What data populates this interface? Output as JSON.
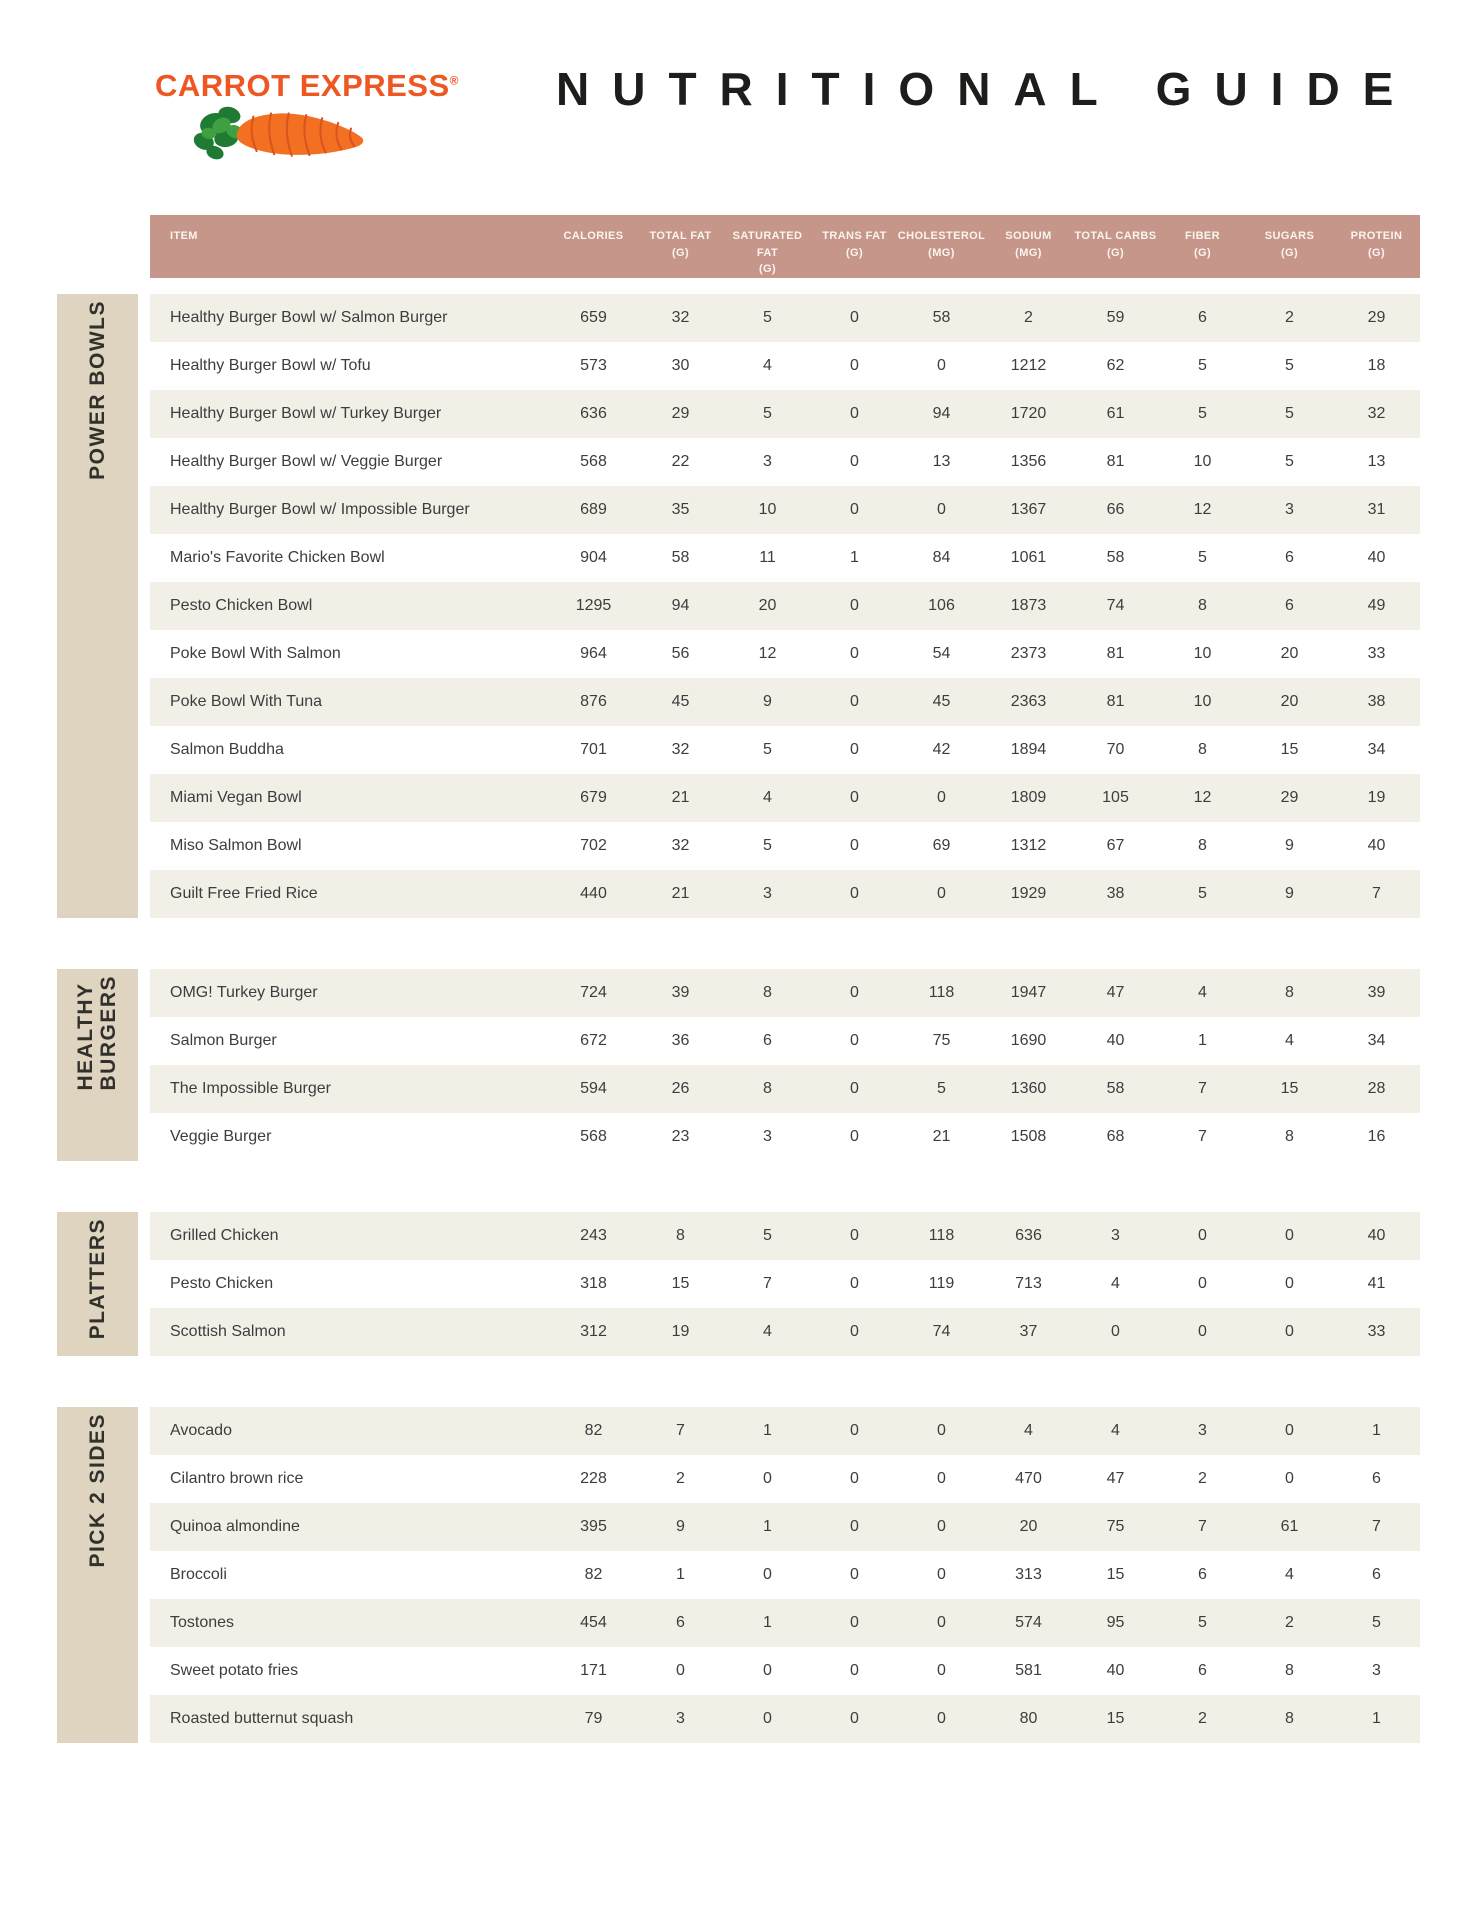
{
  "brand": {
    "logo_text": "CARROT EXPRESS",
    "registered_mark": "®"
  },
  "title": "NUTRITIONAL GUIDE",
  "colors": {
    "header-bg": "#c6968a",
    "row-stripe": "#f2efe7",
    "sidebar-bg": "#ded4c0",
    "text-dark": "#3d3d3d",
    "header-text": "#faf5ef",
    "sidebar-text": "#32302c",
    "brand-orange": "#ee5622",
    "title-black": "#1d1d1b",
    "carrot-orange": "#f36f21",
    "carrot-line": "#d9541e",
    "leaf-green-dark": "#1f7a33",
    "leaf-green-light": "#3fa041"
  },
  "table": {
    "columns": [
      {
        "label": "ITEM",
        "unit": ""
      },
      {
        "label": "CALORIES",
        "unit": ""
      },
      {
        "label": "TOTAL FAT",
        "unit": "(G)"
      },
      {
        "label": "SATURATED FAT",
        "unit": "(G)"
      },
      {
        "label": "TRANS FAT",
        "unit": "(G)"
      },
      {
        "label": "CHOLESTEROL",
        "unit": "(MG)"
      },
      {
        "label": "SODIUM",
        "unit": "(MG)"
      },
      {
        "label": "TOTAL CARBS",
        "unit": "(G)"
      },
      {
        "label": "FIBER",
        "unit": "(G)"
      },
      {
        "label": "SUGARS",
        "unit": "(G)"
      },
      {
        "label": "PROTEIN",
        "unit": "(G)"
      }
    ],
    "sections": [
      {
        "name": "POWER BOWLS",
        "label_lines": [
          "POWER BOWLS"
        ],
        "rows": [
          {
            "item": "Healthy Burger Bowl w/ Salmon Burger",
            "values": [
              659,
              32,
              5,
              0,
              58,
              2,
              59,
              6,
              2,
              29
            ]
          },
          {
            "item": "Healthy Burger Bowl w/ Tofu",
            "values": [
              573,
              30,
              4,
              0,
              0,
              1212,
              62,
              5,
              5,
              18
            ]
          },
          {
            "item": "Healthy Burger Bowl w/ Turkey Burger",
            "values": [
              636,
              29,
              5,
              0,
              94,
              1720,
              61,
              5,
              5,
              32
            ]
          },
          {
            "item": "Healthy Burger Bowl w/ Veggie Burger",
            "values": [
              568,
              22,
              3,
              0,
              13,
              1356,
              81,
              10,
              5,
              13
            ]
          },
          {
            "item": "Healthy Burger Bowl w/ Impossible Burger",
            "values": [
              689,
              35,
              10,
              0,
              0,
              1367,
              66,
              12,
              3,
              31
            ]
          },
          {
            "item": "Mario's Favorite Chicken Bowl",
            "values": [
              904,
              58,
              11,
              1,
              84,
              1061,
              58,
              5,
              6,
              40
            ]
          },
          {
            "item": "Pesto Chicken Bowl",
            "values": [
              1295,
              94,
              20,
              0,
              106,
              1873,
              74,
              8,
              6,
              49
            ]
          },
          {
            "item": "Poke Bowl With Salmon",
            "values": [
              964,
              56,
              12,
              0,
              54,
              2373,
              81,
              10,
              20,
              33
            ]
          },
          {
            "item": "Poke Bowl With Tuna",
            "values": [
              876,
              45,
              9,
              0,
              45,
              2363,
              81,
              10,
              20,
              38
            ]
          },
          {
            "item": "Salmon Buddha",
            "values": [
              701,
              32,
              5,
              0,
              42,
              1894,
              70,
              8,
              15,
              34
            ]
          },
          {
            "item": "Miami Vegan Bowl",
            "values": [
              679,
              21,
              4,
              0,
              0,
              1809,
              105,
              12,
              29,
              19
            ]
          },
          {
            "item": "Miso Salmon Bowl",
            "values": [
              702,
              32,
              5,
              0,
              69,
              1312,
              67,
              8,
              9,
              40
            ]
          },
          {
            "item": "Guilt Free Fried Rice",
            "values": [
              440,
              21,
              3,
              0,
              0,
              1929,
              38,
              5,
              9,
              7
            ]
          }
        ]
      },
      {
        "name": "HEALTHY BURGERS",
        "label_lines": [
          "HEALTHY",
          "BURGERS"
        ],
        "rows": [
          {
            "item": "OMG! Turkey Burger",
            "values": [
              724,
              39,
              8,
              0,
              118,
              1947,
              47,
              4,
              8,
              39
            ]
          },
          {
            "item": "Salmon Burger",
            "values": [
              672,
              36,
              6,
              0,
              75,
              1690,
              40,
              1,
              4,
              34
            ]
          },
          {
            "item": "The Impossible Burger",
            "values": [
              594,
              26,
              8,
              0,
              5,
              1360,
              58,
              7,
              15,
              28
            ]
          },
          {
            "item": "Veggie Burger",
            "values": [
              568,
              23,
              3,
              0,
              21,
              1508,
              68,
              7,
              8,
              16
            ]
          }
        ]
      },
      {
        "name": "PLATTERS",
        "label_lines": [
          "PLATTERS"
        ],
        "rows": [
          {
            "item": "Grilled Chicken",
            "values": [
              243,
              8,
              5,
              0,
              118,
              636,
              3,
              0,
              0,
              40
            ]
          },
          {
            "item": "Pesto Chicken",
            "values": [
              318,
              15,
              7,
              0,
              119,
              713,
              4,
              0,
              0,
              41
            ]
          },
          {
            "item": "Scottish Salmon",
            "values": [
              312,
              19,
              4,
              0,
              74,
              37,
              0,
              0,
              0,
              33
            ]
          }
        ]
      },
      {
        "name": "PICK 2 SIDES",
        "label_lines": [
          "PICK 2 SIDES"
        ],
        "rows": [
          {
            "item": "Avocado",
            "values": [
              82,
              7,
              1,
              0,
              0,
              4,
              4,
              3,
              0,
              1
            ]
          },
          {
            "item": "Cilantro brown rice",
            "values": [
              228,
              2,
              0,
              0,
              0,
              470,
              47,
              2,
              0,
              6
            ]
          },
          {
            "item": "Quinoa almondine",
            "values": [
              395,
              9,
              1,
              0,
              0,
              20,
              75,
              7,
              61,
              7
            ]
          },
          {
            "item": "Broccoli",
            "values": [
              82,
              1,
              0,
              0,
              0,
              313,
              15,
              6,
              4,
              6
            ]
          },
          {
            "item": "Tostones",
            "values": [
              454,
              6,
              1,
              0,
              0,
              574,
              95,
              5,
              2,
              5
            ]
          },
          {
            "item": "Sweet potato fries",
            "values": [
              171,
              0,
              0,
              0,
              0,
              581,
              40,
              6,
              8,
              3
            ]
          },
          {
            "item": "Roasted butternut squash",
            "values": [
              79,
              3,
              0,
              0,
              0,
              80,
              15,
              2,
              8,
              1
            ]
          }
        ]
      }
    ]
  }
}
